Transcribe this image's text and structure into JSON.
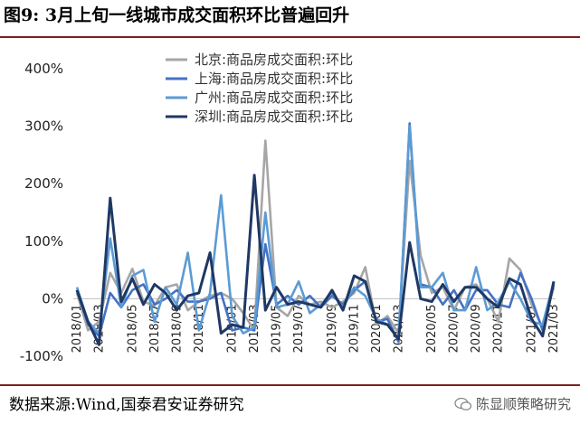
{
  "header": {
    "title": "图9:  3月上旬一线城市成交面积环比普遍回升"
  },
  "footer": {
    "source": "数据来源:Wind,国泰君安证券研究",
    "watermark": "陈显顺策略研究"
  },
  "chart_data": {
    "type": "line",
    "ylabel": "",
    "xlabel": "",
    "ylim": [
      -100,
      400
    ],
    "yticks": [
      -100,
      0,
      100,
      200,
      300,
      400
    ],
    "ytick_labels": [
      "-100%",
      "0%",
      "100%",
      "200%",
      "300%",
      "400%"
    ],
    "xtick_labels": [
      "2018/01",
      "2018/03",
      "2018/05",
      "2018/07",
      "2018/09",
      "2018/11",
      "2019/01",
      "2019/03",
      "2019/05",
      "2019/07",
      "2019/09",
      "2019/11",
      "2020/01",
      "2020/03",
      "2020/05",
      "2020/07",
      "2020/09",
      "2020/11",
      "2021/01",
      "2021/03"
    ],
    "legend_position": "top",
    "series": [
      {
        "name": "北京:商品房成交面积:环比",
        "color": "#a6a6a6",
        "values": [
          10,
          -55,
          -40,
          45,
          10,
          52,
          -5,
          -12,
          20,
          25,
          -20,
          -5,
          5,
          10,
          0,
          -25,
          -55,
          275,
          -15,
          -30,
          5,
          -10,
          -5,
          -15,
          -5,
          10,
          55,
          -45,
          -30,
          -60,
          240,
          75,
          10,
          20,
          -20,
          20,
          25,
          0,
          -40,
          70,
          50,
          -10,
          -50,
          20
        ]
      },
      {
        "name": "上海:商品房成交面积:环比",
        "color": "#4472c4",
        "values": [
          15,
          -45,
          -65,
          10,
          -15,
          15,
          25,
          -10,
          0,
          15,
          -5,
          -5,
          0,
          10,
          -55,
          -50,
          -55,
          95,
          -10,
          5,
          -10,
          5,
          -15,
          5,
          -10,
          15,
          30,
          -40,
          -35,
          -75,
          305,
          25,
          20,
          -10,
          15,
          -20,
          15,
          15,
          -10,
          -15,
          45,
          0,
          -55,
          25
        ]
      },
      {
        "name": "广州:商品房成交面积:环比",
        "color": "#5b9bd5",
        "values": [
          20,
          -40,
          -60,
          105,
          -15,
          40,
          50,
          -40,
          20,
          -10,
          80,
          -55,
          10,
          180,
          -30,
          -60,
          -50,
          150,
          -15,
          -10,
          30,
          -25,
          -10,
          10,
          -15,
          20,
          5,
          -35,
          -45,
          -70,
          300,
          20,
          20,
          45,
          -20,
          -20,
          55,
          -20,
          -5,
          30,
          0,
          -40,
          -45,
          30
        ]
      },
      {
        "name": "深圳:商品房成交面积:环比",
        "color": "#1f3864",
        "values": [
          15,
          -40,
          -80,
          175,
          -5,
          35,
          -10,
          25,
          10,
          -20,
          5,
          10,
          80,
          -60,
          -45,
          -50,
          215,
          -20,
          20,
          -10,
          -5,
          -10,
          -15,
          15,
          -20,
          40,
          30,
          -40,
          -45,
          -70,
          98,
          0,
          -5,
          25,
          -5,
          20,
          20,
          0,
          -15,
          35,
          25,
          -35,
          -65,
          30
        ]
      }
    ]
  }
}
